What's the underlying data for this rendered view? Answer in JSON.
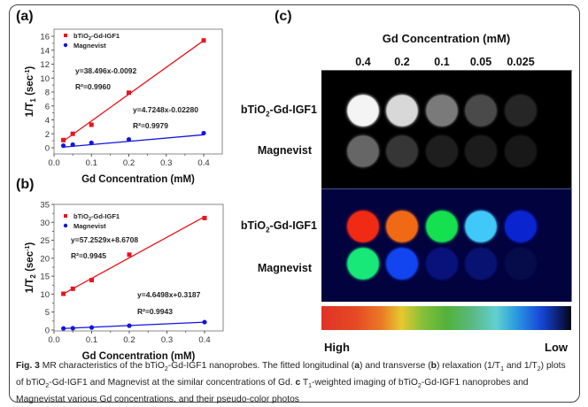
{
  "panels": {
    "a_label": "(a)",
    "b_label": "(b)",
    "c_label": "(c)"
  },
  "chart_data": [
    {
      "id": "a",
      "type": "scatter",
      "title": "",
      "xlabel": "Gd Concentration (mM)",
      "ylabel": "1/T1 (sec-1)",
      "ylabel_main": "1/T",
      "ylabel_sub": "1",
      "ylabel_tail": " (sec",
      "ylabel_sup": "-1",
      "ylabel_close": ")",
      "xlim": [
        0.0,
        0.4
      ],
      "ylim": [
        -0.5,
        16.5
      ],
      "xticks": [
        "0.0",
        "0.1",
        "0.2",
        "0.3",
        "0.4"
      ],
      "xtick_values": [
        0.0,
        0.1,
        0.2,
        0.3,
        0.4
      ],
      "yticks": [
        "0",
        "2",
        "4",
        "6",
        "8",
        "10",
        "12",
        "14",
        "16"
      ],
      "ytick_values": [
        0,
        2,
        4,
        6,
        8,
        10,
        12,
        14,
        16
      ],
      "legend_position": "top-left",
      "x": [
        0.025,
        0.05,
        0.1,
        0.2,
        0.4
      ],
      "series": [
        {
          "name": "bTiO2-Gd-IGF1",
          "legend_main": "bTiO",
          "legend_sub": "2",
          "legend_tail": "-Gd-IGF1",
          "color": "#e8141c",
          "marker": "square",
          "values": [
            1.1,
            2.0,
            3.3,
            7.9,
            15.4
          ],
          "fit": {
            "slope": 38.496,
            "intercept": -0.0092,
            "equation": "y=38.496x-0.0092",
            "r2": "R²=0.9960"
          }
        },
        {
          "name": "Magnevist",
          "legend_main": "Magnevist",
          "legend_sub": "",
          "legend_tail": "",
          "color": "#1414e0",
          "marker": "circle",
          "values": [
            0.3,
            0.45,
            0.7,
            1.2,
            2.1
          ],
          "fit": {
            "slope": 4.7248,
            "intercept": -0.0228,
            "equation": "y=4.7248x-0.02280",
            "r2": "R²=0.9979"
          }
        }
      ]
    },
    {
      "id": "b",
      "type": "scatter",
      "title": "",
      "xlabel": "Gd Concentration (mM)",
      "ylabel": "1/T2 (sec-1)",
      "ylabel_main": "1/T",
      "ylabel_sub": "2",
      "ylabel_tail": " (sec",
      "ylabel_sup": "-1",
      "ylabel_close": ")",
      "xlim": [
        0.0,
        0.4
      ],
      "ylim": [
        0,
        35
      ],
      "xticks": [
        "0.0",
        "0.1",
        "0.2",
        "0.3",
        "0.4"
      ],
      "xtick_values": [
        0.0,
        0.1,
        0.2,
        0.3,
        0.4
      ],
      "yticks": [
        "0",
        "5",
        "10",
        "15",
        "20",
        "25",
        "30",
        "35"
      ],
      "ytick_values": [
        0,
        5,
        10,
        15,
        20,
        25,
        30,
        35
      ],
      "legend_position": "top-left",
      "x": [
        0.025,
        0.05,
        0.1,
        0.2,
        0.4
      ],
      "series": [
        {
          "name": "bTiO2-Gd-IGF1",
          "legend_main": "bTiO",
          "legend_sub": "2",
          "legend_tail": "-Gd-IGF1",
          "color": "#e8141c",
          "marker": "square",
          "values": [
            10.1,
            11.5,
            13.9,
            21.0,
            31.2
          ],
          "fit": {
            "slope": 57.2529,
            "intercept": 8.6708,
            "equation": "y=57.2529x+8.6708",
            "r2": "R²=0.9945"
          }
        },
        {
          "name": "Magnevist",
          "legend_main": "Magnevist",
          "legend_sub": "",
          "legend_tail": "",
          "color": "#1414e0",
          "marker": "circle",
          "values": [
            0.45,
            0.5,
            0.7,
            1.2,
            2.2
          ],
          "fit": {
            "slope": 4.6498,
            "intercept": 0.3187,
            "equation": "y=4.6498x+0.3187",
            "r2": "R²=0.9943"
          }
        }
      ]
    }
  ],
  "mri": {
    "title": "Gd Concentration (mM)",
    "concentrations": [
      "0.4",
      "0.2",
      "0.1",
      "0.05",
      "0.025"
    ],
    "rows": [
      {
        "main": "bTiO",
        "sub": "2",
        "tail": "-Gd-IGF1"
      },
      {
        "main": "Magnevist",
        "sub": "",
        "tail": ""
      },
      {
        "main": "bTiO",
        "sub": "2",
        "tail": "-Gd-IGF1"
      },
      {
        "main": "Magnevist",
        "sub": "",
        "tail": ""
      }
    ],
    "grayscale": {
      "bTiO2-Gd-IGF1": [
        "#f4f4f4",
        "#d8d8d8",
        "#7a7a7a",
        "#4a4a4a",
        "#262626"
      ],
      "Magnevist": [
        "#666666",
        "#363636",
        "#1e1e1e",
        "#1c1c1c",
        "#181818"
      ]
    },
    "pseudocolor": {
      "bTiO2-Gd-IGF1": [
        "#f02a14",
        "#f06a16",
        "#14e050",
        "#40c8f8",
        "#0a24d0"
      ],
      "Magnevist": [
        "#18e878",
        "#1244f0",
        "#08127a",
        "#081270",
        "#060c4a"
      ]
    },
    "colorbar": {
      "high_label": "High",
      "low_label": "Low"
    }
  },
  "caption": {
    "fig": "Fig. 3",
    "t1": " MR characteristics of the bTiO",
    "s1": "2",
    "t2": "-Gd-IGF1 nanoprobes. The fitted longitudinal (",
    "ba": "a",
    "t3": ") and transverse (",
    "bb": "b",
    "t4": ") relaxation (1/T",
    "s2": "1",
    "t5": " and 1/T",
    "s3": "2",
    "t6": ") plots of bTiO",
    "s4": "2",
    "t7": "-Gd-IGF1 and Magnevist at the similar concentrations of Gd. ",
    "bc": "c",
    "t8": " T",
    "s5": "1",
    "t9": "-weighted imaging of bTiO",
    "s6": "2",
    "t10": "-Gd-IGF1 nanoprobes and Magnevistat various Gd concentrations, and their pseudo-color photos"
  }
}
